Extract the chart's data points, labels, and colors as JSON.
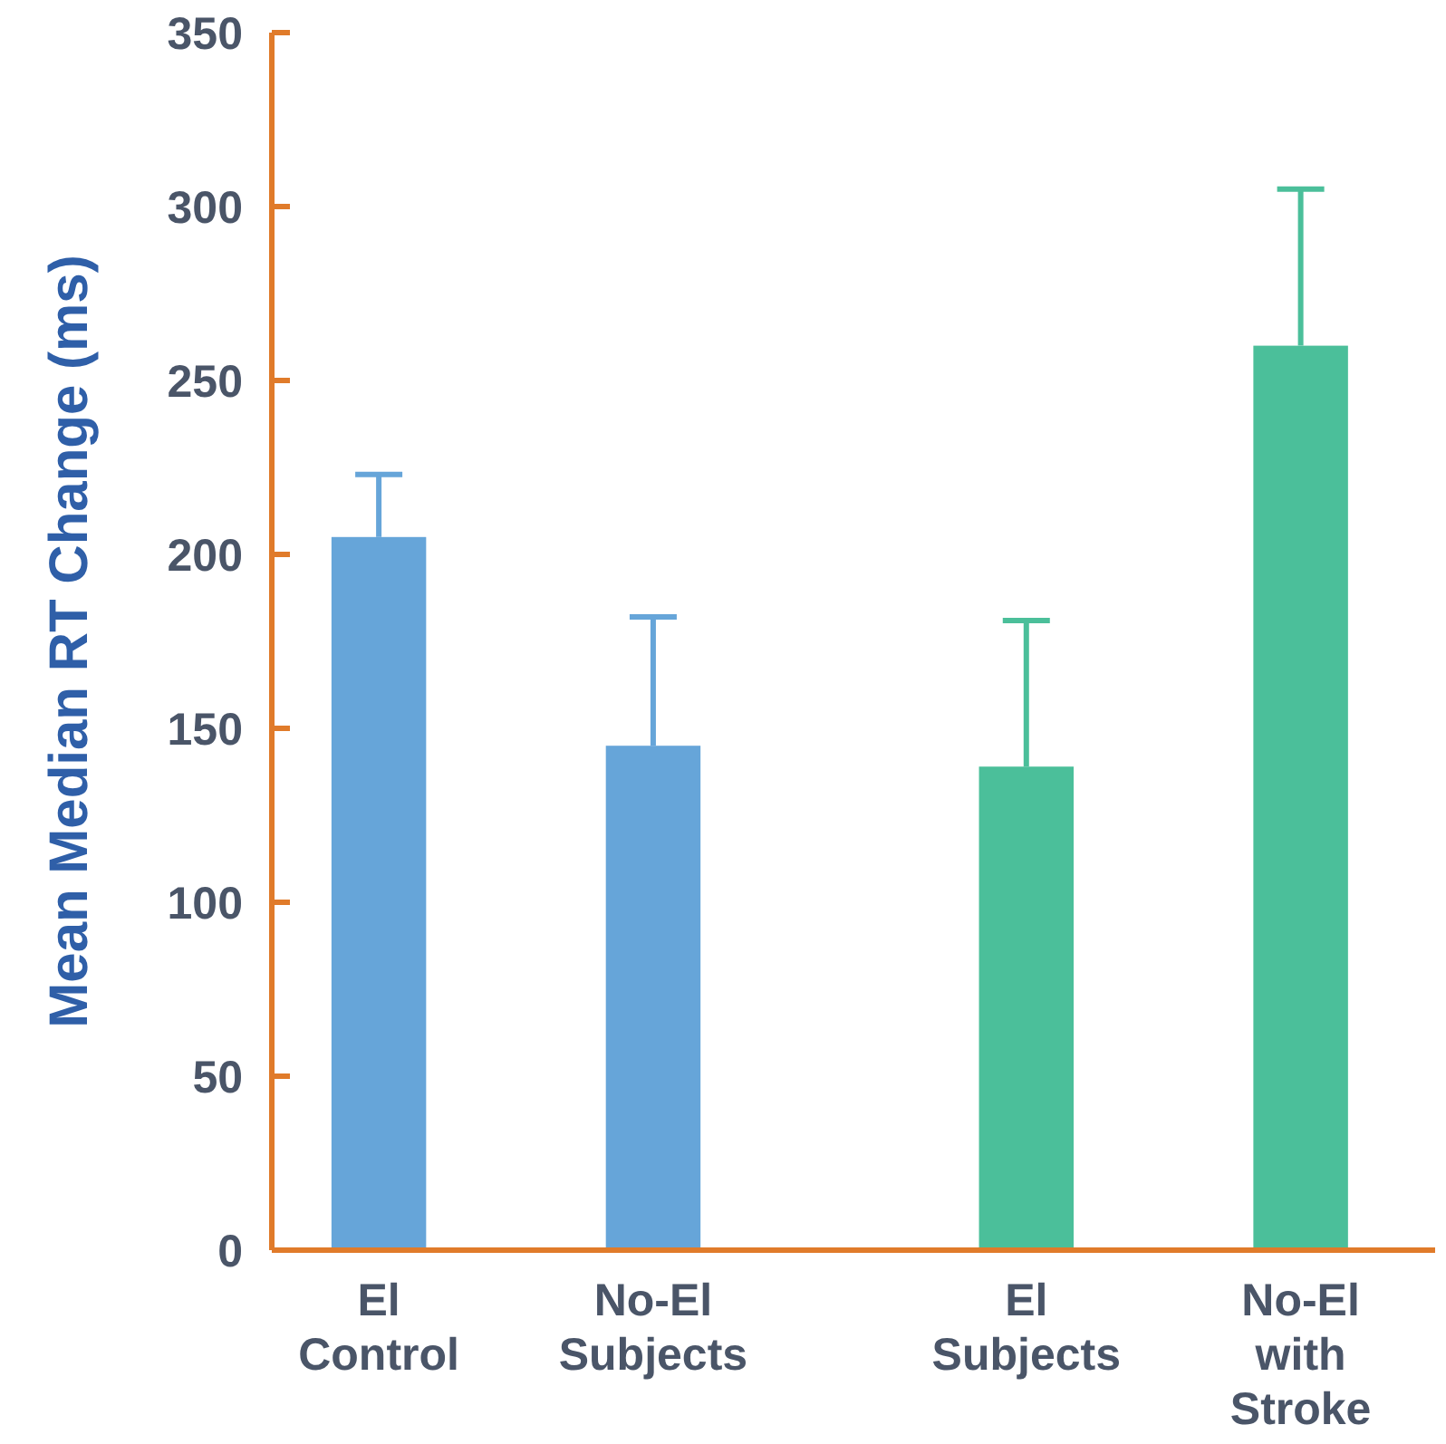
{
  "chart_data": {
    "type": "bar",
    "ylabel": "Mean Median RT Change (ms)",
    "categories": [
      "El Control",
      "No-El Subjects",
      "El Subjects",
      "No-El with Stroke"
    ],
    "values": [
      205,
      145,
      139,
      260
    ],
    "colors": [
      "#66a5d9",
      "#66a5d9",
      "#4bbf9a",
      "#4bbf9a"
    ],
    "errors": [
      [
        205,
        223
      ],
      [
        145,
        182
      ],
      [
        139,
        181
      ],
      [
        260,
        305
      ]
    ],
    "ylim": [
      0,
      350
    ],
    "yticks": [
      0,
      50,
      100,
      150,
      200,
      250,
      300,
      350
    ]
  }
}
